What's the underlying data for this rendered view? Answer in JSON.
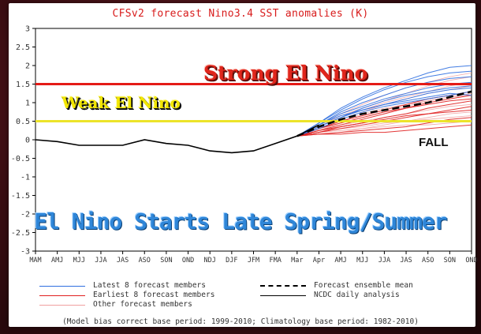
{
  "chart_data": {
    "type": "line",
    "title": "CFSv2 forecast Nino3.4 SST anomalies (K)",
    "x_labels": [
      "MAM",
      "AMJ",
      "MJJ",
      "JJA",
      "JAS",
      "ASO",
      "SON",
      "OND",
      "NDJ",
      "DJF",
      "JFM",
      "FMA",
      "Mar",
      "Apr",
      "AMJ",
      "MJJ",
      "JJA",
      "JAS",
      "ASO",
      "SON",
      "OND"
    ],
    "ylim": [
      -3,
      3
    ],
    "y_ticks": [
      -3,
      -2.5,
      -2,
      -1.5,
      -1,
      -0.5,
      0,
      0.5,
      1,
      1.5,
      2,
      2.5,
      3
    ],
    "y_tick_labels": [
      "-3",
      "-2.5",
      "-2",
      "-1.5",
      "-1",
      "-0.5",
      "0",
      "0.5",
      "1",
      "1.5",
      "2",
      "2.5",
      "3"
    ],
    "grid": false,
    "series": [
      {
        "name": "NCDC daily analysis",
        "color": "#000000",
        "style": "solid",
        "x_index": [
          0,
          1,
          2,
          3,
          4,
          5,
          6,
          7,
          8,
          9,
          10,
          11,
          12,
          13
        ],
        "values": [
          0.0,
          -0.05,
          -0.15,
          -0.15,
          -0.15,
          0.0,
          -0.1,
          -0.15,
          -0.3,
          -0.35,
          -0.3,
          -0.1,
          0.1,
          0.4
        ]
      },
      {
        "name": "Forecast ensemble mean",
        "color": "#000000",
        "style": "dashed",
        "x_index": [
          12,
          13,
          14,
          15,
          16,
          17,
          18,
          19,
          20
        ],
        "values": [
          0.1,
          0.35,
          0.55,
          0.7,
          0.8,
          0.9,
          1.0,
          1.15,
          1.3
        ]
      },
      {
        "name": "Latest 8 forecast members",
        "color": "#2f6fe0",
        "style": "thin",
        "x_index": [
          12,
          13,
          14,
          15,
          16,
          17,
          18,
          19,
          20
        ],
        "members": [
          [
            0.1,
            0.45,
            0.8,
            1.1,
            1.35,
            1.55,
            1.7,
            1.8,
            1.85
          ],
          [
            0.1,
            0.4,
            0.75,
            1.0,
            1.2,
            1.4,
            1.55,
            1.65,
            1.7
          ],
          [
            0.1,
            0.4,
            0.7,
            0.9,
            1.1,
            1.25,
            1.4,
            1.5,
            1.55
          ],
          [
            0.1,
            0.35,
            0.6,
            0.85,
            1.05,
            1.2,
            1.3,
            1.4,
            1.45
          ],
          [
            0.1,
            0.4,
            0.65,
            0.8,
            0.95,
            1.1,
            1.25,
            1.35,
            1.4
          ],
          [
            0.1,
            0.3,
            0.55,
            0.75,
            0.9,
            1.0,
            1.1,
            1.2,
            1.3
          ],
          [
            0.1,
            0.35,
            0.6,
            0.8,
            0.95,
            1.05,
            1.15,
            1.25,
            1.2
          ],
          [
            0.1,
            0.45,
            0.85,
            1.15,
            1.4,
            1.6,
            1.8,
            1.95,
            2.0
          ]
        ]
      },
      {
        "name": "Earliest 8 forecast members",
        "color": "#e02020",
        "style": "thin",
        "x_index": [
          12,
          13,
          14,
          15,
          16,
          17,
          18,
          19,
          20
        ],
        "members": [
          [
            0.1,
            0.25,
            0.4,
            0.55,
            0.7,
            0.85,
            1.0,
            1.1,
            1.2
          ],
          [
            0.1,
            0.2,
            0.35,
            0.45,
            0.6,
            0.7,
            0.85,
            0.95,
            1.05
          ],
          [
            0.1,
            0.3,
            0.45,
            0.6,
            0.75,
            0.85,
            0.95,
            1.05,
            1.1
          ],
          [
            0.1,
            0.2,
            0.3,
            0.4,
            0.5,
            0.6,
            0.7,
            0.8,
            0.9
          ],
          [
            0.1,
            0.15,
            0.2,
            0.25,
            0.3,
            0.35,
            0.45,
            0.55,
            0.6
          ],
          [
            0.1,
            0.25,
            0.35,
            0.45,
            0.55,
            0.65,
            0.7,
            0.75,
            0.8
          ],
          [
            0.1,
            0.15,
            0.15,
            0.2,
            0.2,
            0.25,
            0.3,
            0.35,
            0.4
          ],
          [
            0.1,
            0.3,
            0.5,
            0.65,
            0.8,
            0.95,
            1.1,
            1.2,
            1.3
          ]
        ]
      },
      {
        "name": "Other forecast members",
        "color": "#f0a0a0",
        "style": "thin",
        "x_index": [
          12,
          13,
          14,
          15,
          16,
          17,
          18,
          19,
          20
        ],
        "members": [
          [
            0.1,
            0.35,
            0.6,
            0.8,
            1.0,
            1.15,
            1.3,
            1.45,
            1.55
          ],
          [
            0.1,
            0.3,
            0.5,
            0.7,
            0.85,
            0.95,
            1.05,
            1.15,
            1.2
          ],
          [
            0.1,
            0.25,
            0.4,
            0.5,
            0.6,
            0.7,
            0.8,
            0.9,
            0.95
          ],
          [
            0.1,
            0.4,
            0.7,
            0.95,
            1.2,
            1.4,
            1.55,
            1.7,
            1.8
          ],
          [
            0.1,
            0.2,
            0.3,
            0.35,
            0.45,
            0.5,
            0.55,
            0.6,
            0.65
          ],
          [
            0.1,
            0.3,
            0.55,
            0.75,
            0.95,
            1.1,
            1.25,
            1.35,
            1.45
          ],
          [
            0.1,
            0.2,
            0.25,
            0.3,
            0.35,
            0.4,
            0.4,
            0.45,
            0.5
          ],
          [
            0.1,
            0.35,
            0.65,
            0.85,
            1.05,
            1.25,
            1.45,
            1.6,
            1.7
          ],
          [
            0.1,
            0.25,
            0.45,
            0.6,
            0.75,
            0.9,
            1.05,
            1.15,
            1.25
          ],
          [
            0.1,
            0.15,
            0.2,
            0.3,
            0.4,
            0.5,
            0.6,
            0.7,
            0.75
          ]
        ]
      }
    ],
    "reference_lines": [
      {
        "label": "Strong El Nino",
        "value": 1.5,
        "color": "#e41b17"
      },
      {
        "label": "Weak El Nino",
        "value": 0.5,
        "color": "#ece42a"
      }
    ]
  },
  "annotations": {
    "strong": "Strong El Nino",
    "weak": "Weak El Nino",
    "fall": "FALL",
    "start": "El Nino Starts Late Spring/Summer"
  },
  "legend": [
    {
      "label": "Latest 8 forecast members",
      "color": "#2f6fe0",
      "style": "solid"
    },
    {
      "label": "Forecast ensemble mean",
      "color": "#000000",
      "style": "dashed"
    },
    {
      "label": "Earliest 8 forecast members",
      "color": "#e02020",
      "style": "solid"
    },
    {
      "label": "NCDC daily analysis",
      "color": "#000000",
      "style": "solid"
    },
    {
      "label": "Other forecast members",
      "color": "#f0a0a0",
      "style": "solid"
    }
  ],
  "footnote": "(Model bias correct base period: 1999-2010; Climatology base period: 1982-2010)"
}
